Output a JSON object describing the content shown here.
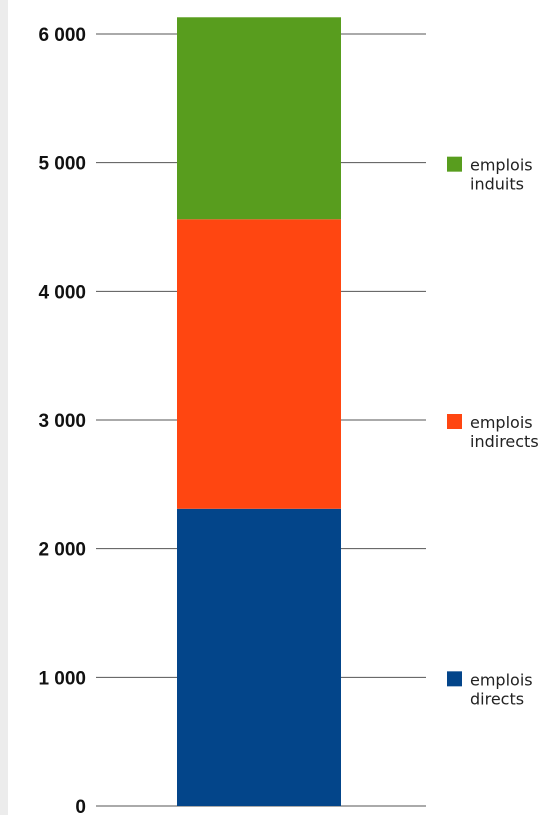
{
  "chart_data": {
    "type": "bar",
    "stacked": true,
    "categories": [
      ""
    ],
    "series": [
      {
        "name": "emplois directs",
        "values": [
          2310
        ],
        "color": "#03458a"
      },
      {
        "name": "emplois indirects",
        "values": [
          2250
        ],
        "color": "#ff4611"
      },
      {
        "name": "emplois induits",
        "values": [
          1570
        ],
        "color": "#589d1e"
      }
    ],
    "ylim": [
      0,
      6000
    ],
    "yticks": [
      0,
      1000,
      2000,
      3000,
      4000,
      5000,
      6000
    ],
    "ytick_labels": [
      "0",
      "1 000",
      "2 000",
      "3 000",
      "4 000",
      "5 000",
      "6 000"
    ],
    "grid": true,
    "legend": {
      "placement": "right",
      "entries": [
        {
          "line1": "emplois",
          "line2": "induits",
          "color": "#589d1e"
        },
        {
          "line1": "emplois",
          "line2": "indirects",
          "color": "#ff4611"
        },
        {
          "line1": "emplois",
          "line2": "directs",
          "color": "#03458a"
        }
      ]
    }
  }
}
